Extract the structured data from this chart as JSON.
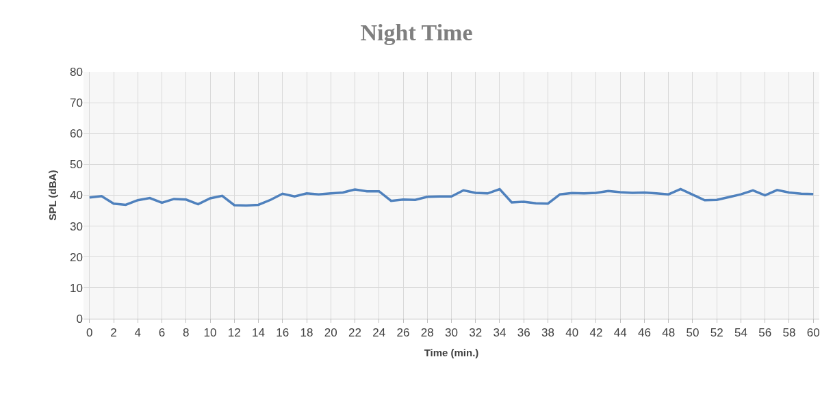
{
  "chart_data": {
    "type": "line",
    "title": "Night Time",
    "xlabel": "Time (min.)",
    "ylabel": "SPL (dBA)",
    "x": [
      0,
      1,
      2,
      3,
      4,
      5,
      6,
      7,
      8,
      9,
      10,
      11,
      12,
      13,
      14,
      15,
      16,
      17,
      18,
      19,
      20,
      21,
      22,
      23,
      24,
      25,
      26,
      27,
      28,
      29,
      30,
      31,
      32,
      33,
      34,
      35,
      36,
      37,
      38,
      39,
      40,
      41,
      42,
      43,
      44,
      45,
      46,
      47,
      48,
      49,
      50,
      51,
      52,
      53,
      54,
      55,
      56,
      57,
      58,
      59,
      60
    ],
    "series": [
      {
        "color": "#4f81bd",
        "values": [
          39.3,
          39.7,
          37.3,
          36.9,
          38.4,
          39.1,
          37.6,
          38.8,
          38.6,
          37.1,
          39.0,
          39.8,
          36.8,
          36.7,
          36.9,
          38.5,
          40.5,
          39.6,
          40.6,
          40.3,
          40.6,
          40.9,
          41.9,
          41.3,
          41.3,
          38.2,
          38.6,
          38.5,
          39.5,
          39.6,
          39.6,
          41.6,
          40.8,
          40.6,
          42.0,
          37.7,
          37.9,
          37.4,
          37.3,
          40.3,
          40.7,
          40.6,
          40.8,
          41.4,
          41.0,
          40.8,
          40.9,
          40.6,
          40.3,
          42.0,
          40.2,
          38.4,
          38.5,
          39.4,
          40.3,
          41.6,
          40.0,
          41.7,
          40.9,
          40.5,
          40.4
        ]
      }
    ],
    "xlim": [
      -0.5,
      60.5
    ],
    "xticks": [
      0,
      2,
      4,
      6,
      8,
      10,
      12,
      14,
      16,
      18,
      20,
      22,
      24,
      26,
      28,
      30,
      32,
      34,
      36,
      38,
      40,
      42,
      44,
      46,
      48,
      50,
      52,
      54,
      56,
      58,
      60
    ],
    "ylim": [
      0,
      80
    ],
    "yticks": [
      0,
      10,
      20,
      30,
      40,
      50,
      60,
      70,
      80
    ],
    "grid": true,
    "marker": "none",
    "line_style": "solid"
  }
}
